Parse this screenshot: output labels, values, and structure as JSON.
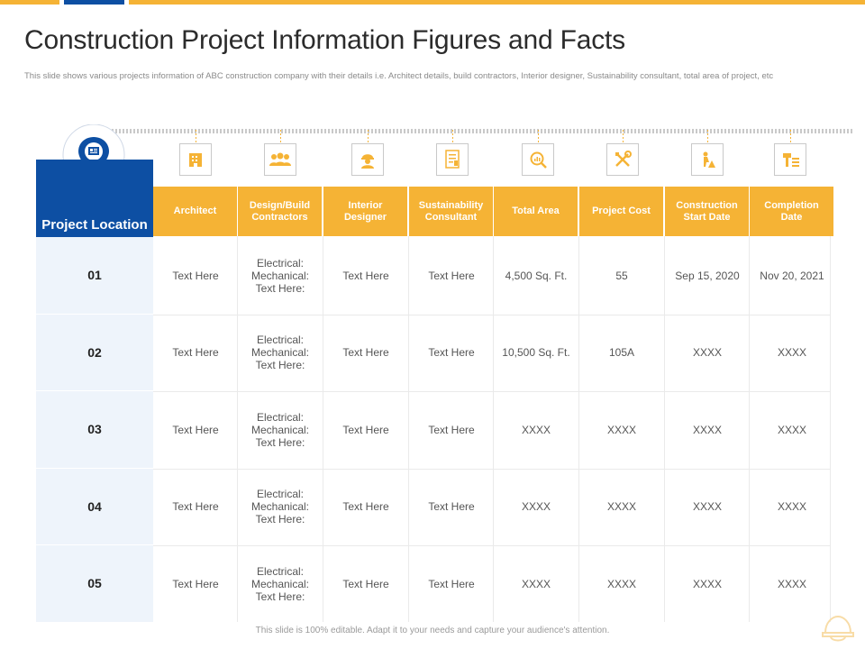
{
  "page": {
    "title": "Construction Project Information Figures and Facts",
    "subtitle": "This slide shows various projects information of ABC construction company with their details i.e. Architect details, build contractors, Interior designer, Sustainability consultant, total area of project, etc",
    "footer": "This slide is 100% editable. Adapt it to your needs and capture your audience's attention."
  },
  "colors": {
    "accent": "#f5b335",
    "brand": "#0d4fa3",
    "row_bg": "#eef4fb"
  },
  "table": {
    "corner_label": "Project Location",
    "header_icons": [
      "building-icon",
      "team-icon",
      "worker-icon",
      "document-icon",
      "magnifier-chart-icon",
      "tools-icon",
      "construction-worker-icon",
      "hammer-icon"
    ],
    "headers": [
      "Architect",
      "Design/Build Contractors",
      "Interior Designer",
      "Sustainability Consultant",
      "Total Area",
      "Project Cost",
      "Construction Start Date",
      "Completion Date"
    ],
    "rows": [
      {
        "id": "01",
        "cells": [
          "Text Here",
          "Electrical: Mechanical: Text Here:",
          "Text Here",
          "Text Here",
          "4,500 Sq. Ft.",
          "55",
          "Sep 15, 2020",
          "Nov 20, 2021"
        ]
      },
      {
        "id": "02",
        "cells": [
          "Text Here",
          "Electrical: Mechanical: Text Here:",
          "Text Here",
          "Text Here",
          "10,500 Sq. Ft.",
          "105A",
          "XXXX",
          "XXXX"
        ]
      },
      {
        "id": "03",
        "cells": [
          "Text Here",
          "Electrical: Mechanical: Text Here:",
          "Text Here",
          "Text Here",
          "XXXX",
          "XXXX",
          "XXXX",
          "XXXX"
        ]
      },
      {
        "id": "04",
        "cells": [
          "Text Here",
          "Electrical: Mechanical: Text Here:",
          "Text Here",
          "Text Here",
          "XXXX",
          "XXXX",
          "XXXX",
          "XXXX"
        ]
      },
      {
        "id": "05",
        "cells": [
          "Text Here",
          "Electrical: Mechanical: Text Here:",
          "Text Here",
          "Text Here",
          "XXXX",
          "XXXX",
          "XXXX",
          "XXXX"
        ]
      }
    ]
  }
}
